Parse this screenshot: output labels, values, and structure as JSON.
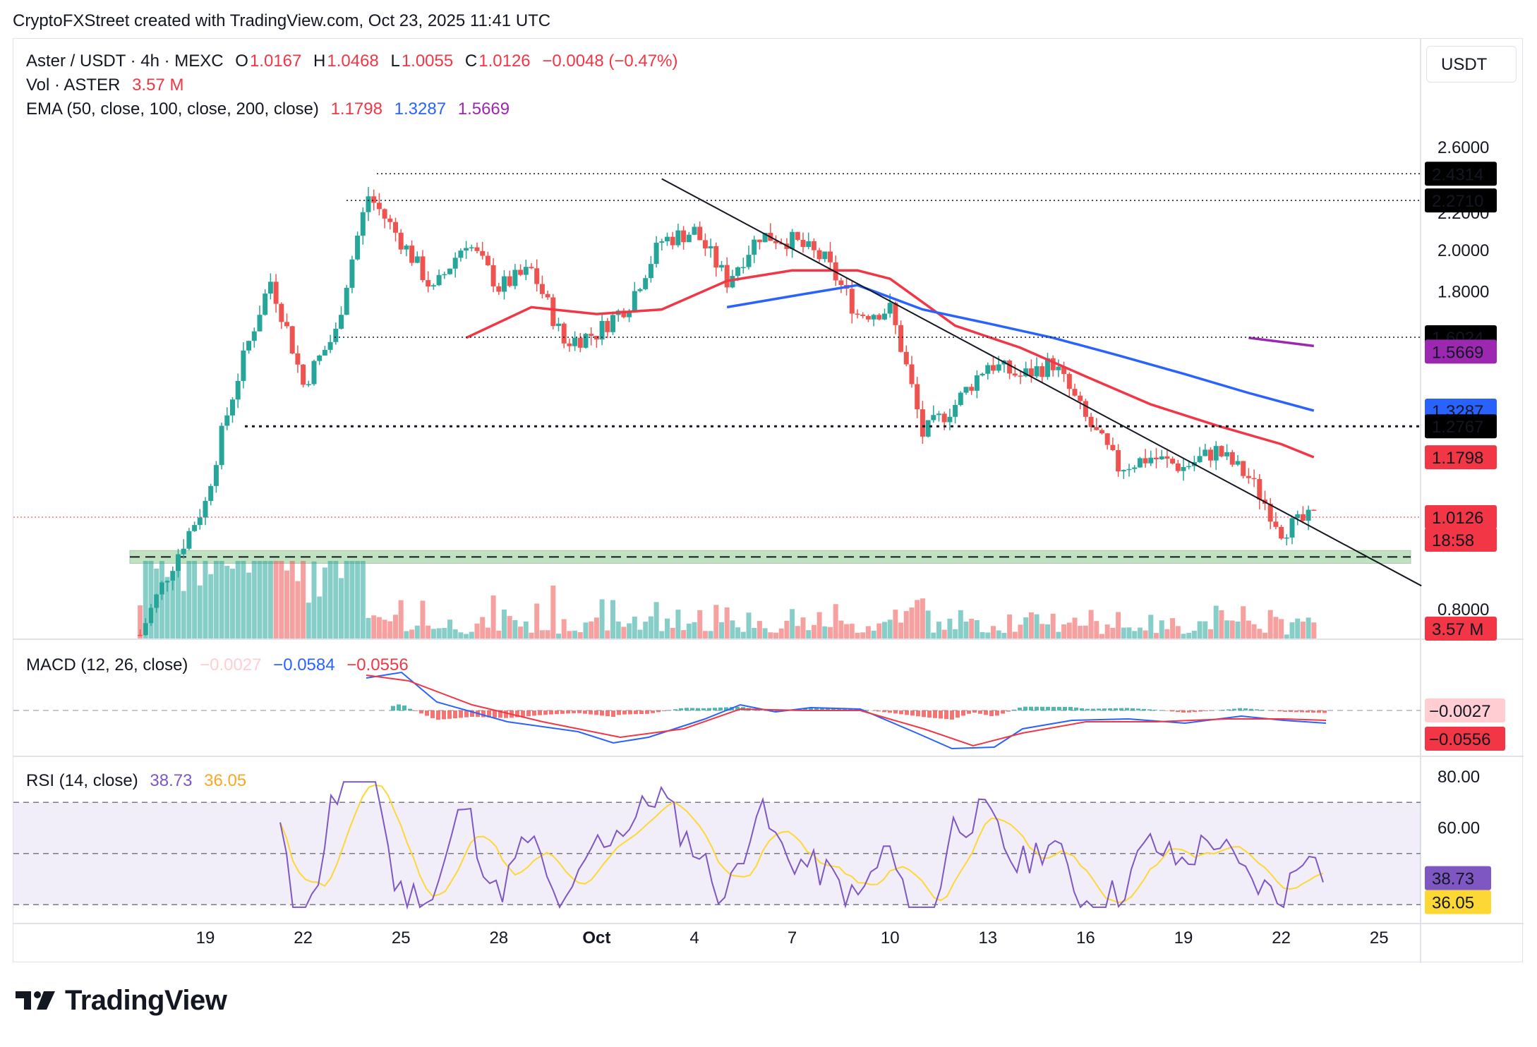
{
  "header": {
    "credit": "CryptoFXStreet created with TradingView.com, Oct 23, 2025 11:41 UTC"
  },
  "legend": {
    "symbol": "Aster / USDT · 4h · MEXC",
    "o_label": "O",
    "o_value": "1.0167",
    "h_label": "H",
    "h_value": "1.0468",
    "l_label": "L",
    "l_value": "1.0055",
    "c_label": "C",
    "c_value": "1.0126",
    "change": "−0.0048 (−0.47%)",
    "vol_label": "Vol · ASTER",
    "vol_value": "3.57 M",
    "ema_label": "EMA (50, close, 100, close, 200, close)",
    "ema50": "1.1798",
    "ema100": "1.3287",
    "ema200": "1.5669",
    "macd_label": "MACD (12, 26, close)",
    "macd_hist": "−0.0027",
    "macd_line": "−0.0584",
    "macd_signal": "−0.0556",
    "rsi_label": "RSI (14, close)",
    "rsi_value": "38.73",
    "rsi_ma": "36.05"
  },
  "price_axis": {
    "currency": "USDT",
    "ticks": [
      "2.6000",
      "2.2000",
      "2.0000",
      "1.8000",
      "0.8000"
    ],
    "tags": [
      {
        "value": "2.4314",
        "color": "#000000"
      },
      {
        "value": "2.2710",
        "color": "#000000"
      },
      {
        "value": "1.6024",
        "color": "#000000"
      },
      {
        "value": "1.5669",
        "color": "#9c27b0"
      },
      {
        "value": "1.3287",
        "color": "#2962ff"
      },
      {
        "value": "1.2767",
        "color": "#000000"
      },
      {
        "value": "1.1798",
        "color": "#f23645"
      },
      {
        "value": "1.0126",
        "color": "#f23645"
      },
      {
        "value": "18:58",
        "color": "#f23645"
      },
      {
        "value": "3.57 M",
        "color": "#f23645"
      }
    ]
  },
  "macd_axis": {
    "tags": [
      {
        "value": "−0.0027",
        "color": "#ffcdd2",
        "text": "#131722"
      },
      {
        "value": "−0.0556",
        "color": "#f23645",
        "text": "#ffffff"
      }
    ]
  },
  "rsi_axis": {
    "ticks": [
      "80.00",
      "60.00"
    ],
    "tags": [
      {
        "value": "38.73",
        "color": "#7e57c2",
        "text": "#ffffff"
      },
      {
        "value": "36.05",
        "color": "#fdd835",
        "text": "#131722"
      }
    ]
  },
  "time_axis": [
    "19",
    "22",
    "25",
    "28",
    "Oct",
    "4",
    "7",
    "10",
    "13",
    "16",
    "19",
    "22",
    "25"
  ],
  "footer": {
    "brand": "TradingView"
  },
  "colors": {
    "up": "#26a69a",
    "down": "#ef5350",
    "ema50": "#f23645",
    "ema100": "#2962ff",
    "ema200": "#9c27b0",
    "macd": "#2962ff",
    "signal": "#f23645",
    "rsi": "#7e57c2",
    "rsi_ma": "#fdd835",
    "support_zone": "#4caf50"
  },
  "chart_data": {
    "type": "candlestick",
    "symbol": "Aster / USDT",
    "timeframe": "4h",
    "x_ticks": [
      "19",
      "22",
      "25",
      "28",
      "Oct",
      "4",
      "7",
      "10",
      "13",
      "16",
      "19",
      "22",
      "25"
    ],
    "price_ylim": [
      0.7,
      2.75
    ],
    "price_scale": "log",
    "close_path": [
      {
        "date": "Sep 17",
        "close": 0.75
      },
      {
        "date": "Sep 18",
        "close": 0.9
      },
      {
        "date": "Sep 19",
        "close": 1.05
      },
      {
        "date": "Sep 20",
        "close": 1.45
      },
      {
        "date": "Sep 21",
        "close": 1.85
      },
      {
        "date": "Sep 22",
        "close": 1.42
      },
      {
        "date": "Sep 23",
        "close": 1.62
      },
      {
        "date": "Sep 24",
        "close": 2.3
      },
      {
        "date": "Sep 25",
        "close": 2.05
      },
      {
        "date": "Sep 26",
        "close": 1.8
      },
      {
        "date": "Sep 27",
        "close": 2.05
      },
      {
        "date": "Sep 28",
        "close": 1.82
      },
      {
        "date": "Sep 29",
        "close": 1.9
      },
      {
        "date": "Sep 30",
        "close": 1.58
      },
      {
        "date": "Oct 1",
        "close": 1.62
      },
      {
        "date": "Oct 2",
        "close": 1.75
      },
      {
        "date": "Oct 3",
        "close": 2.05
      },
      {
        "date": "Oct 4",
        "close": 2.1
      },
      {
        "date": "Oct 5",
        "close": 1.85
      },
      {
        "date": "Oct 6",
        "close": 2.08
      },
      {
        "date": "Oct 7",
        "close": 2.05
      },
      {
        "date": "Oct 8",
        "close": 1.95
      },
      {
        "date": "Oct 9",
        "close": 1.7
      },
      {
        "date": "Oct 10",
        "close": 1.72
      },
      {
        "date": "Oct 11",
        "close": 1.25
      },
      {
        "date": "Oct 12",
        "close": 1.35
      },
      {
        "date": "Oct 13",
        "close": 1.5
      },
      {
        "date": "Oct 14",
        "close": 1.45
      },
      {
        "date": "Oct 15",
        "close": 1.5
      },
      {
        "date": "Oct 16",
        "close": 1.3
      },
      {
        "date": "Oct 17",
        "close": 1.15
      },
      {
        "date": "Oct 18",
        "close": 1.18
      },
      {
        "date": "Oct 19",
        "close": 1.15
      },
      {
        "date": "Oct 20",
        "close": 1.2
      },
      {
        "date": "Oct 21",
        "close": 1.12
      },
      {
        "date": "Oct 22",
        "close": 0.98
      },
      {
        "date": "Oct 23",
        "close": 1.0126
      }
    ],
    "ema50_path": [
      {
        "date": "Sep 27",
        "value": 1.6
      },
      {
        "date": "Sep 29",
        "value": 1.73
      },
      {
        "date": "Oct 1",
        "value": 1.7
      },
      {
        "date": "Oct 3",
        "value": 1.72
      },
      {
        "date": "Oct 5",
        "value": 1.85
      },
      {
        "date": "Oct 7",
        "value": 1.9
      },
      {
        "date": "Oct 9",
        "value": 1.9
      },
      {
        "date": "Oct 10",
        "value": 1.86
      },
      {
        "date": "Oct 12",
        "value": 1.65
      },
      {
        "date": "Oct 14",
        "value": 1.56
      },
      {
        "date": "Oct 16",
        "value": 1.45
      },
      {
        "date": "Oct 18",
        "value": 1.35
      },
      {
        "date": "Oct 20",
        "value": 1.28
      },
      {
        "date": "Oct 22",
        "value": 1.22
      },
      {
        "date": "Oct 23",
        "value": 1.1798
      }
    ],
    "ema100_path": [
      {
        "date": "Oct 5",
        "value": 1.73
      },
      {
        "date": "Oct 7",
        "value": 1.78
      },
      {
        "date": "Oct 9",
        "value": 1.83
      },
      {
        "date": "Oct 11",
        "value": 1.72
      },
      {
        "date": "Oct 13",
        "value": 1.66
      },
      {
        "date": "Oct 15",
        "value": 1.6
      },
      {
        "date": "Oct 17",
        "value": 1.53
      },
      {
        "date": "Oct 19",
        "value": 1.46
      },
      {
        "date": "Oct 21",
        "value": 1.39
      },
      {
        "date": "Oct 23",
        "value": 1.3287
      }
    ],
    "ema200_path": [
      {
        "date": "Oct 21",
        "value": 1.6
      },
      {
        "date": "Oct 23",
        "value": 1.5669
      }
    ],
    "horizontal_levels": [
      2.4314,
      2.271,
      1.6024,
      1.2767
    ],
    "support_zone": [
      0.9,
      0.93
    ],
    "trendline": {
      "start_date": "Oct 3",
      "start_price": 2.4,
      "end_date": "Oct 25",
      "end_price": 0.85
    },
    "volume_last": "3.57 M",
    "macd_last": {
      "hist": -0.0027,
      "macd": -0.0584,
      "signal": -0.0556
    },
    "rsi_last": {
      "rsi": 38.73,
      "ma": 36.05
    },
    "rsi_levels": [
      70,
      50,
      30
    ]
  }
}
